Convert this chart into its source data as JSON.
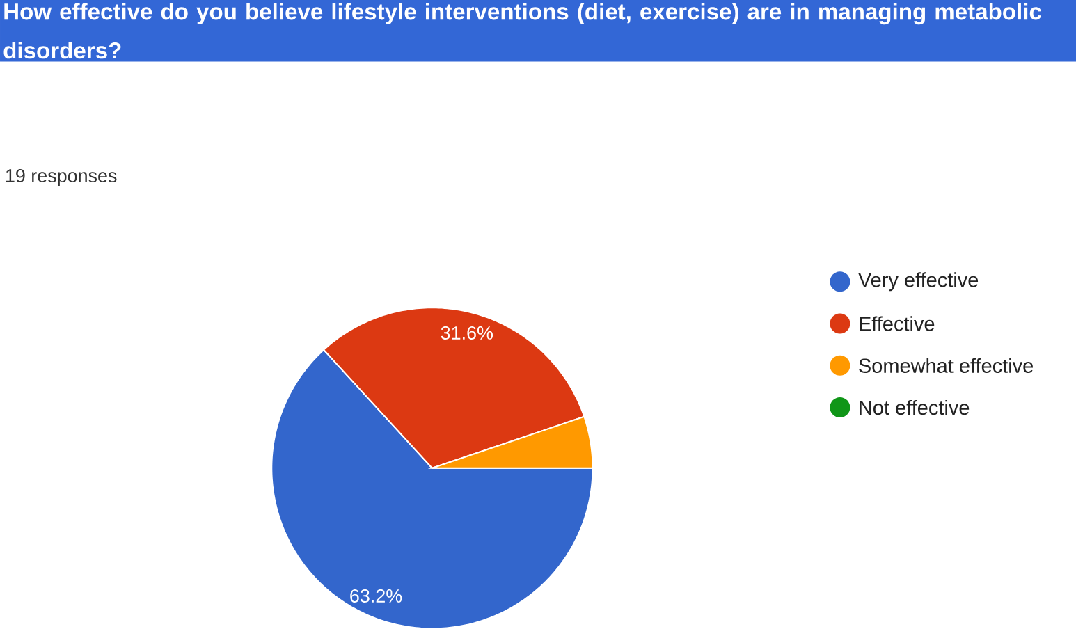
{
  "chart_data": {
    "type": "pie",
    "title": "How effective do you believe lifestyle interventions (diet, exercise) are in managing metabolic disorders?",
    "subtitle": "19 responses",
    "categories": [
      "Very effective",
      "Effective",
      "Somewhat effective",
      "Not effective"
    ],
    "values": [
      63.2,
      31.6,
      5.2,
      0
    ],
    "colors": [
      "#3366cc",
      "#dc3912",
      "#ff9900",
      "#109618"
    ],
    "value_labels": [
      "63.2%",
      "31.6%",
      null,
      null
    ],
    "legend": "right"
  }
}
